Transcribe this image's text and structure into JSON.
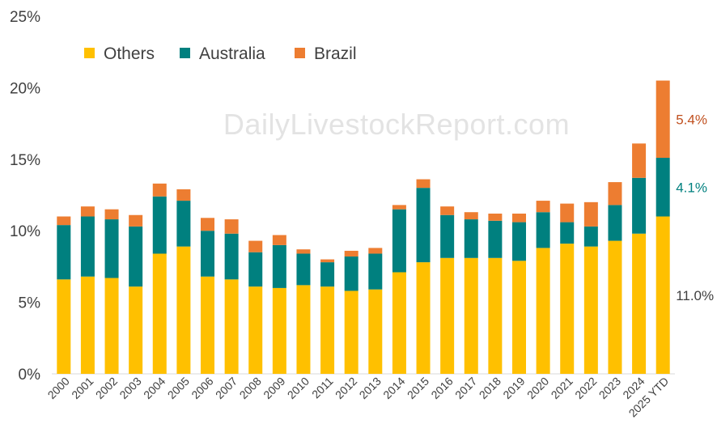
{
  "chart_data": {
    "type": "bar",
    "stacked": true,
    "title": "",
    "xlabel": "",
    "ylabel": "",
    "ylim": [
      0,
      25
    ],
    "yticks": [
      0,
      5,
      10,
      15,
      20,
      25
    ],
    "ytick_labels": [
      "0%",
      "5%",
      "10%",
      "15%",
      "20%",
      "25%"
    ],
    "grid": false,
    "legend_position": "top-left",
    "categories": [
      "2000",
      "2001",
      "2002",
      "2003",
      "2004",
      "2005",
      "2006",
      "2007",
      "2008",
      "2009",
      "2010",
      "2011",
      "2012",
      "2013",
      "2014",
      "2015",
      "2016",
      "2017",
      "2018",
      "2019",
      "2020",
      "2021",
      "2022",
      "2023",
      "2024",
      "2025 YTD"
    ],
    "series": [
      {
        "name": "Others",
        "color": "#ffc000",
        "values": [
          6.6,
          6.8,
          6.7,
          6.1,
          8.4,
          8.9,
          6.8,
          6.6,
          6.1,
          6.0,
          6.2,
          6.1,
          5.8,
          5.9,
          7.1,
          7.8,
          8.1,
          8.1,
          8.1,
          7.9,
          8.8,
          9.1,
          8.9,
          9.3,
          9.8,
          11.0
        ]
      },
      {
        "name": "Australia",
        "color": "#00807f",
        "values": [
          3.8,
          4.2,
          4.1,
          4.2,
          4.0,
          3.2,
          3.2,
          3.2,
          2.4,
          3.0,
          2.2,
          1.7,
          2.4,
          2.5,
          4.4,
          5.2,
          3.0,
          2.7,
          2.6,
          2.7,
          2.5,
          1.5,
          1.4,
          2.5,
          3.9,
          4.1
        ]
      },
      {
        "name": "Brazil",
        "color": "#ed7d31",
        "values": [
          0.6,
          0.7,
          0.7,
          0.8,
          0.9,
          0.8,
          0.9,
          1.0,
          0.8,
          0.7,
          0.3,
          0.2,
          0.4,
          0.4,
          0.3,
          0.6,
          0.6,
          0.5,
          0.5,
          0.6,
          0.8,
          1.3,
          1.7,
          1.6,
          2.4,
          5.4
        ]
      }
    ],
    "annotations": [
      {
        "series": "Brazil",
        "text": "5.4%",
        "color": "#c0501f"
      },
      {
        "series": "Australia",
        "text": "4.1%",
        "color": "#00807f"
      },
      {
        "series": "Others",
        "text": "11.0%",
        "color": "#404040"
      }
    ],
    "watermark": "DailyLivestockReport.com"
  }
}
